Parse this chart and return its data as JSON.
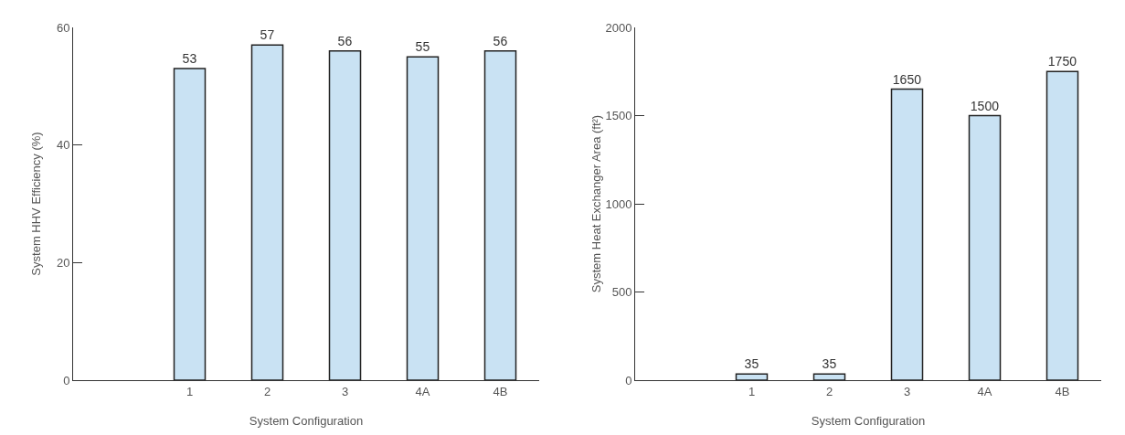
{
  "chart_data": [
    {
      "type": "bar",
      "xlabel": "System Configuration",
      "ylabel": "System HHV Efficiency (%)",
      "categories": [
        "1",
        "2",
        "3",
        "4A",
        "4B"
      ],
      "values": [
        53,
        57,
        56,
        55,
        56
      ],
      "color": "#c9e2f3",
      "ylim": [
        0,
        60
      ],
      "yticks": [
        0,
        20,
        40,
        60
      ],
      "grid": false,
      "data_labels": true
    },
    {
      "type": "bar",
      "xlabel": "System Configuration",
      "ylabel": "System Heat Exchanger Area (ft²)",
      "categories": [
        "1",
        "2",
        "3",
        "4A",
        "4B"
      ],
      "values": [
        35,
        35,
        1650,
        1500,
        1750
      ],
      "color": "#c9e2f3",
      "ylim": [
        0,
        2000
      ],
      "yticks": [
        0,
        500,
        1000,
        1500,
        2000
      ],
      "grid": false,
      "data_labels": true
    }
  ]
}
